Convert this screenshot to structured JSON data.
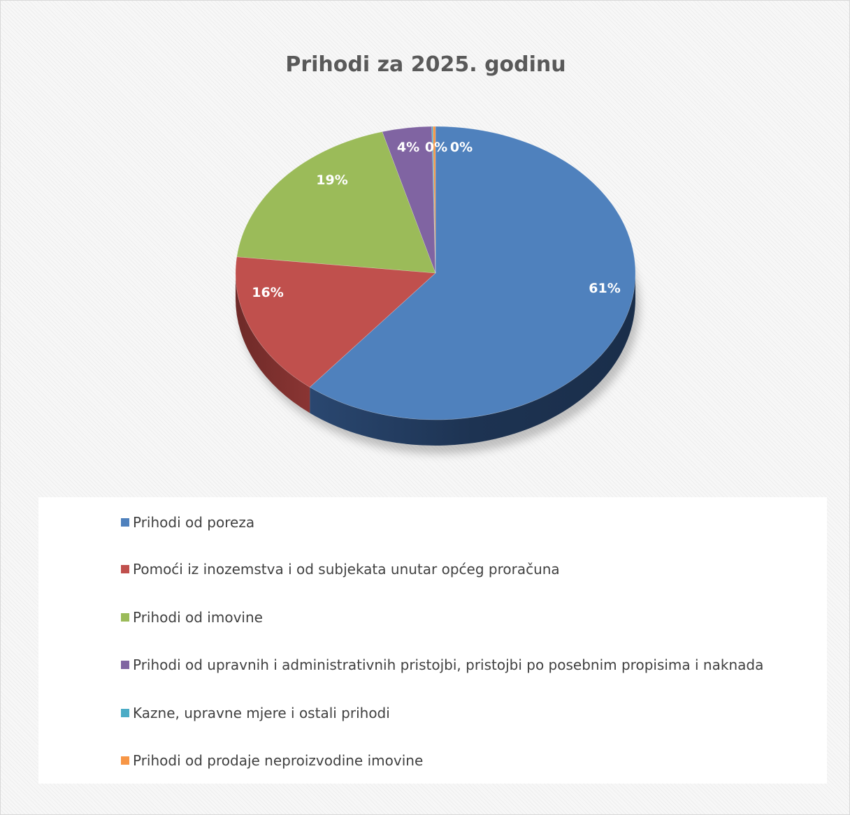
{
  "chart_data": {
    "type": "pie",
    "title": "Prihodi za 2025. godinu",
    "categories": [
      "Prihodi od poreza",
      "Pomoći iz inozemstva i od subjekata unutar općeg proračuna",
      "Prihodi od imovine",
      "Prihodi od upravnih i administrativnih pristojbi, pristojbi po posebnim propisima i naknada",
      "Kazne, upravne mjere i ostali prihodi",
      "Prihodi od prodaje neproizvodine imovine"
    ],
    "values": [
      61,
      16,
      19,
      4,
      0.1,
      0.2
    ],
    "data_labels": [
      "61%",
      "16%",
      "19%",
      "4%",
      "0%",
      "0%"
    ],
    "colors": [
      "#4f81bd",
      "#c0504d",
      "#9bbb59",
      "#8064a2",
      "#4bacc6",
      "#f79646"
    ],
    "legend_position": "bottom",
    "style": "3d"
  }
}
